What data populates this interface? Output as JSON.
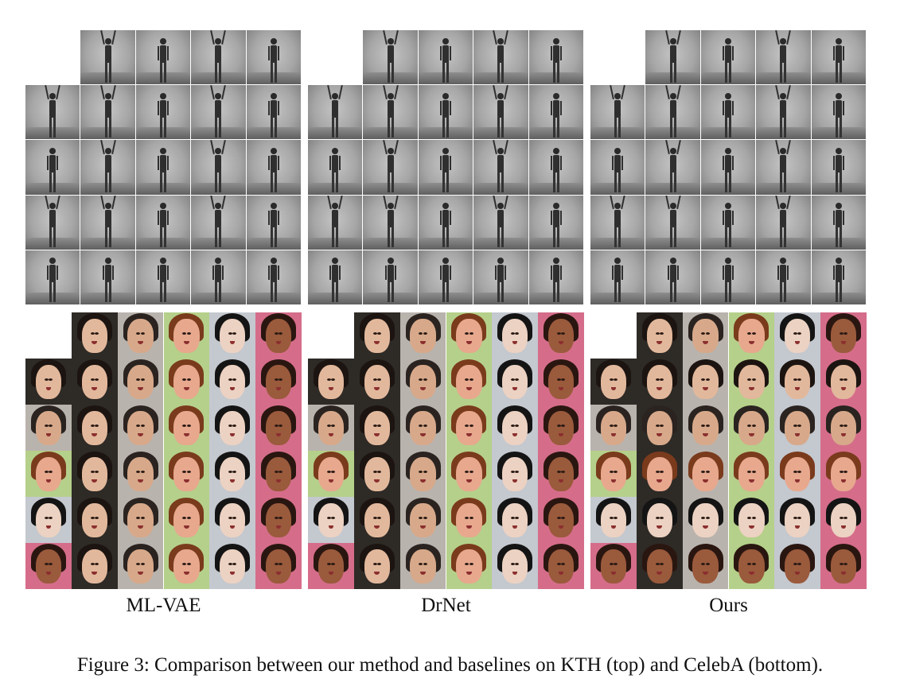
{
  "figure": {
    "columns": [
      {
        "label": "ML-VAE"
      },
      {
        "label": "DrNet"
      },
      {
        "label": "Ours"
      }
    ],
    "caption": "Figure 3: Comparison between our method and baselines on KTH (top) and CelebA (bottom).",
    "kth_poses": [
      [
        "",
        "up",
        "down",
        "up",
        "down"
      ],
      [
        "up",
        "up",
        "down",
        "up",
        "down"
      ],
      [
        "down",
        "up",
        "down",
        "up",
        "down"
      ],
      [
        "up",
        "up",
        "down",
        "up",
        "down"
      ],
      [
        "down",
        "down",
        "down",
        "down",
        "down"
      ]
    ],
    "celeba_identities": [
      {
        "skin": "#e2b89c",
        "hair": "#1c1410"
      },
      {
        "skin": "#d7a98a",
        "hair": "#2a2320"
      },
      {
        "skin": "#e7a88e",
        "hair": "#7a3a1c"
      },
      {
        "skin": "#ecd2c2",
        "hair": "#141414"
      },
      {
        "skin": "#9a5a3c",
        "hair": "#2a1610"
      }
    ],
    "celeba_backgrounds": [
      "#2e2a26",
      "#b9b3ad",
      "#b5d08a",
      "#c4c8cf",
      "#d56d8a"
    ]
  }
}
